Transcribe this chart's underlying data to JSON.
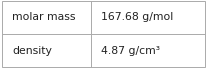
{
  "rows": [
    {
      "label": "molar mass",
      "value": "167.68 g/mol"
    },
    {
      "label": "density",
      "value": "4.87 g/cm³"
    }
  ],
  "col_split": 0.44,
  "background_color": "#ffffff",
  "border_color": "#aaaaaa",
  "text_color": "#222222",
  "label_font_size": 7.8,
  "value_font_size": 7.8,
  "fig_width": 2.07,
  "fig_height": 0.68,
  "dpi": 100
}
